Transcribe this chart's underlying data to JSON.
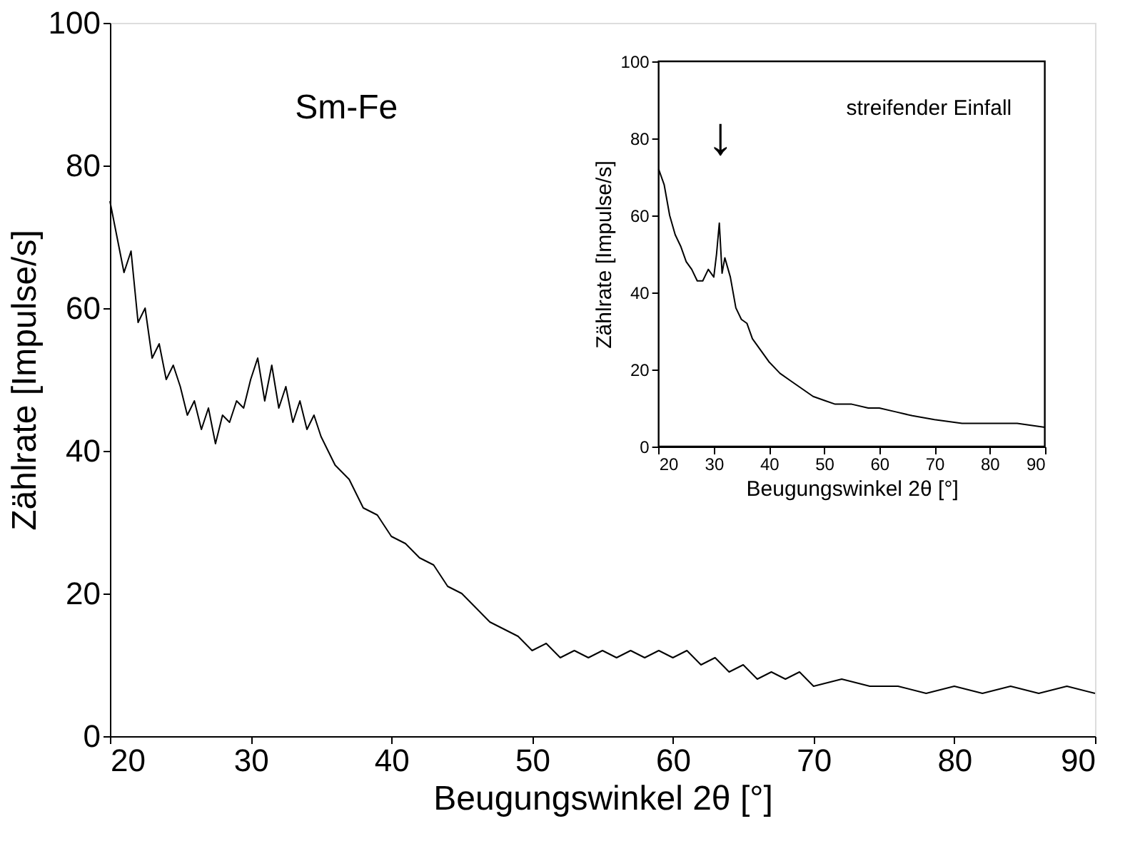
{
  "chart_data": [
    {
      "type": "line",
      "xlabel": "Beugungswinkel 2θ [°]",
      "ylabel": "Zählrate [Impulse/s]",
      "xlim": [
        20,
        90
      ],
      "ylim": [
        0,
        100
      ],
      "xticks": [
        20,
        30,
        40,
        50,
        60,
        70,
        80,
        90
      ],
      "yticks": [
        0,
        20,
        40,
        60,
        80,
        100
      ],
      "annotations": [
        "Sm-Fe"
      ],
      "x": [
        20,
        20.5,
        21,
        21.5,
        22,
        22.5,
        23,
        23.5,
        24,
        24.5,
        25,
        25.5,
        26,
        26.5,
        27,
        27.5,
        28,
        28.5,
        29,
        29.5,
        30,
        30.5,
        31,
        31.5,
        32,
        32.5,
        33,
        33.5,
        34,
        34.5,
        35,
        36,
        37,
        38,
        39,
        40,
        41,
        42,
        43,
        44,
        45,
        46,
        47,
        48,
        49,
        50,
        51,
        52,
        53,
        54,
        55,
        56,
        57,
        58,
        59,
        60,
        61,
        62,
        63,
        64,
        65,
        66,
        67,
        68,
        69,
        70,
        72,
        74,
        76,
        78,
        80,
        82,
        84,
        86,
        88,
        90
      ],
      "series": [
        {
          "color": "#000000",
          "values": [
            75,
            70,
            65,
            68,
            58,
            60,
            53,
            55,
            50,
            52,
            49,
            45,
            47,
            43,
            46,
            41,
            45,
            44,
            47,
            46,
            50,
            53,
            47,
            52,
            46,
            49,
            44,
            47,
            43,
            45,
            42,
            38,
            36,
            32,
            31,
            28,
            27,
            25,
            24,
            21,
            20,
            18,
            16,
            15,
            14,
            12,
            13,
            11,
            12,
            11,
            12,
            11,
            12,
            11,
            12,
            11,
            12,
            10,
            11,
            9,
            10,
            8,
            9,
            8,
            9,
            7,
            8,
            7,
            7,
            6,
            7,
            6,
            7,
            6,
            7,
            6
          ]
        }
      ]
    },
    {
      "type": "line",
      "xlabel": "Beugungswinkel 2θ [°]",
      "ylabel": "Zählrate [Impulse/s]",
      "xlim": [
        20,
        90
      ],
      "ylim": [
        0,
        100
      ],
      "xticks": [
        20,
        30,
        40,
        50,
        60,
        70,
        80,
        90
      ],
      "yticks": [
        0,
        20,
        40,
        60,
        80,
        100
      ],
      "annotations": [
        "streifender Einfall",
        "↓"
      ],
      "x": [
        20,
        21,
        22,
        23,
        24,
        25,
        26,
        27,
        28,
        29,
        30,
        30.5,
        31,
        31.5,
        32,
        33,
        34,
        35,
        36,
        37,
        38,
        39,
        40,
        42,
        44,
        46,
        48,
        50,
        52,
        55,
        58,
        60,
        63,
        66,
        70,
        75,
        80,
        85,
        90
      ],
      "series": [
        {
          "color": "#000000",
          "values": [
            72,
            68,
            60,
            55,
            52,
            48,
            46,
            43,
            43,
            46,
            44,
            50,
            58,
            45,
            49,
            44,
            36,
            33,
            32,
            28,
            26,
            24,
            22,
            19,
            17,
            15,
            13,
            12,
            11,
            11,
            10,
            10,
            9,
            8,
            7,
            6,
            6,
            6,
            5
          ]
        }
      ]
    }
  ]
}
